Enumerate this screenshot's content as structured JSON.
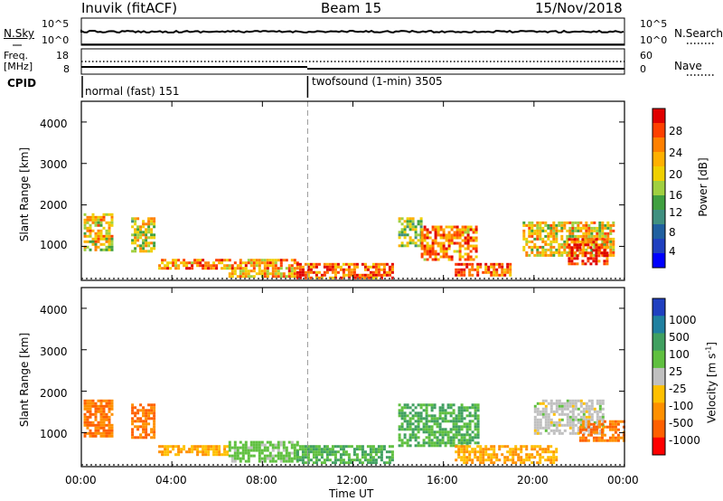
{
  "header": {
    "station": "Inuvik (fitACF)",
    "beam": "Beam 15",
    "date": "15/Nov/2018"
  },
  "sky_panel": {
    "left_label": "N.Sky",
    "left_ticks": [
      "10^5",
      "10^0"
    ],
    "right_label": "N.Search",
    "right_ticks": [
      "10^5",
      "10^0"
    ]
  },
  "freq_panel": {
    "left_label": "Freq.",
    "left_unit": "[MHz]",
    "left_ticks": [
      "18",
      "8"
    ],
    "right_label": "Nave",
    "right_ticks": [
      "60",
      "0"
    ]
  },
  "cpid": {
    "label": "CPID",
    "segments": [
      {
        "name": "normal (fast) 151",
        "start_hour": 0
      },
      {
        "name": "twofsound (1-min) 3505",
        "start_hour": 10
      }
    ]
  },
  "colorbars": {
    "power": {
      "title": "Power [dB]",
      "ticks": [
        "28",
        "24",
        "20",
        "16",
        "12",
        "8",
        "4"
      ],
      "colors": [
        "#e00000",
        "#ff4000",
        "#ff8000",
        "#ffb000",
        "#f0d000",
        "#a0d040",
        "#40a040",
        "#409080",
        "#2060a0",
        "#2040c0",
        "#0000ff"
      ]
    },
    "velocity": {
      "title": "Velocity [m s",
      "title_sup": "-1",
      "title_end": "]",
      "ticks": [
        "1000",
        "500",
        "100",
        "25",
        "-25",
        "-100",
        "-500",
        "-1000"
      ],
      "colors": [
        "#2040c0",
        "#2080a0",
        "#40a060",
        "#60c040",
        "#c0c0c0",
        "#ffc000",
        "#ff9000",
        "#ff6000",
        "#ff0000"
      ]
    }
  },
  "axes": {
    "xlabel": "Time UT",
    "xticks": [
      "00:00",
      "04:00",
      "08:00",
      "12:00",
      "16:00",
      "20:00",
      "00:00"
    ],
    "ylabel": "Slant Range [km]",
    "yticks": [
      "1000",
      "2000",
      "3000",
      "4000"
    ]
  },
  "chart_data": [
    {
      "type": "heatmap",
      "title": "",
      "xlabel": "",
      "ylabel": "Slant Range [km]",
      "colorbar_label": "Power [dB]",
      "xlim_hours": [
        0,
        24
      ],
      "ylim_km": [
        180,
        4500
      ],
      "patches": [
        {
          "t0": 0.1,
          "t1": 1.3,
          "r0": 900,
          "r1": 1800,
          "value": 20
        },
        {
          "t0": 2.2,
          "t1": 3.2,
          "r0": 900,
          "r1": 1700,
          "value": 18
        },
        {
          "t0": 3.4,
          "t1": 6.5,
          "r0": 500,
          "r1": 700,
          "value": 24
        },
        {
          "t0": 6.5,
          "t1": 9.5,
          "r0": 300,
          "r1": 700,
          "value": 22
        },
        {
          "t0": 9.5,
          "t1": 13.8,
          "r0": 250,
          "r1": 600,
          "value": 26
        },
        {
          "t0": 14.0,
          "t1": 15.0,
          "r0": 1000,
          "r1": 1700,
          "value": 16
        },
        {
          "t0": 15.0,
          "t1": 17.5,
          "r0": 700,
          "r1": 1500,
          "value": 24
        },
        {
          "t0": 16.5,
          "t1": 19.0,
          "r0": 300,
          "r1": 600,
          "value": 26
        },
        {
          "t0": 19.5,
          "t1": 23.5,
          "r0": 800,
          "r1": 1600,
          "value": 20
        },
        {
          "t0": 21.5,
          "t1": 23.2,
          "r0": 600,
          "r1": 1200,
          "value": 28
        }
      ]
    },
    {
      "type": "heatmap",
      "title": "",
      "xlabel": "Time UT",
      "ylabel": "Slant Range [km]",
      "colorbar_label": "Velocity [m s-1]",
      "xlim_hours": [
        0,
        24
      ],
      "ylim_km": [
        180,
        4500
      ],
      "patches": [
        {
          "t0": 0.1,
          "t1": 1.3,
          "r0": 900,
          "r1": 1800,
          "value": -500
        },
        {
          "t0": 2.2,
          "t1": 3.2,
          "r0": 900,
          "r1": 1700,
          "value": -500
        },
        {
          "t0": 3.4,
          "t1": 6.5,
          "r0": 500,
          "r1": 700,
          "value": -100
        },
        {
          "t0": 6.5,
          "t1": 9.5,
          "r0": 300,
          "r1": 800,
          "value": 50
        },
        {
          "t0": 9.5,
          "t1": 13.8,
          "r0": 250,
          "r1": 700,
          "value": 100
        },
        {
          "t0": 14.0,
          "t1": 17.5,
          "r0": 700,
          "r1": 1700,
          "value": 100
        },
        {
          "t0": 16.5,
          "t1": 21.0,
          "r0": 300,
          "r1": 700,
          "value": -100
        },
        {
          "t0": 20.0,
          "t1": 23.0,
          "r0": 1000,
          "r1": 1800,
          "value": 0
        },
        {
          "t0": 22.0,
          "t1": 24.0,
          "r0": 800,
          "r1": 1300,
          "value": -500
        }
      ]
    }
  ]
}
